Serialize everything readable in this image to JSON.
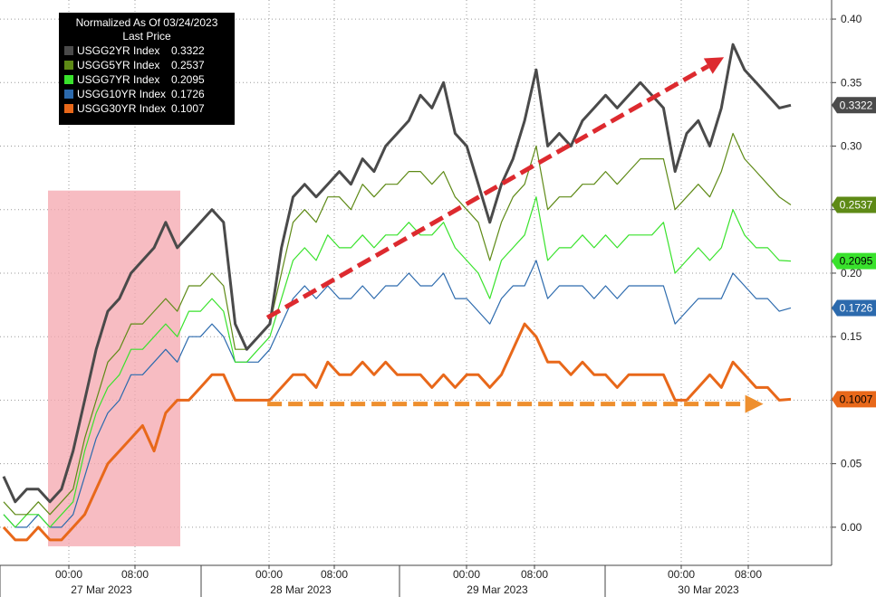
{
  "chart_data": {
    "type": "line",
    "legend": {
      "title": "Normalized As Of 03/24/2023",
      "subtitle": "Last Price",
      "placement": "top-left"
    },
    "y_axis": {
      "ticks": [
        "0.40",
        "0.35",
        "0.30",
        "0.25",
        "0.20",
        "0.15",
        "0.10",
        "0.05",
        "0.00"
      ],
      "tick_values": [
        0.4,
        0.35,
        0.3,
        0.25,
        0.2,
        0.15,
        0.1,
        0.05,
        0.0
      ],
      "ylim": [
        -0.03,
        0.415
      ],
      "side": "right"
    },
    "x_axis": {
      "time_ticks": [
        "00:00",
        "08:00",
        "00:00",
        "08:00",
        "00:00",
        "08:00",
        "00:00",
        "08:00"
      ],
      "date_labels": [
        "27 Mar 2023",
        "28 Mar 2023",
        "29 Mar 2023",
        "30 Mar 2023"
      ]
    },
    "grid": true,
    "highlight_region": {
      "color": "#f4a6ad",
      "y_range": [
        -0.015,
        0.265
      ]
    },
    "series": [
      {
        "name": "USGG2YR Index",
        "last": "0.3322",
        "color": "#4a4a4a",
        "values": [
          0.04,
          0.02,
          0.03,
          0.03,
          0.02,
          0.03,
          0.06,
          0.1,
          0.14,
          0.17,
          0.18,
          0.2,
          0.21,
          0.22,
          0.24,
          0.22,
          0.23,
          0.24,
          0.25,
          0.24,
          0.16,
          0.14,
          0.15,
          0.16,
          0.22,
          0.26,
          0.27,
          0.26,
          0.27,
          0.28,
          0.27,
          0.29,
          0.28,
          0.3,
          0.31,
          0.32,
          0.34,
          0.33,
          0.35,
          0.31,
          0.3,
          0.27,
          0.24,
          0.27,
          0.29,
          0.32,
          0.36,
          0.3,
          0.31,
          0.3,
          0.32,
          0.33,
          0.34,
          0.33,
          0.34,
          0.35,
          0.34,
          0.33,
          0.28,
          0.31,
          0.32,
          0.3,
          0.33,
          0.38,
          0.36,
          0.35,
          0.34,
          0.33,
          0.3322
        ]
      },
      {
        "name": "USGG5YR Index",
        "last": "0.2537",
        "color": "#5e8a16",
        "values": [
          0.02,
          0.01,
          0.01,
          0.02,
          0.01,
          0.02,
          0.03,
          0.07,
          0.1,
          0.13,
          0.14,
          0.16,
          0.16,
          0.17,
          0.18,
          0.17,
          0.19,
          0.19,
          0.2,
          0.19,
          0.14,
          0.14,
          0.15,
          0.16,
          0.2,
          0.24,
          0.25,
          0.24,
          0.26,
          0.26,
          0.25,
          0.27,
          0.26,
          0.27,
          0.27,
          0.28,
          0.28,
          0.27,
          0.28,
          0.26,
          0.25,
          0.24,
          0.21,
          0.24,
          0.26,
          0.27,
          0.3,
          0.25,
          0.26,
          0.26,
          0.27,
          0.27,
          0.28,
          0.27,
          0.28,
          0.29,
          0.29,
          0.29,
          0.25,
          0.26,
          0.27,
          0.26,
          0.28,
          0.31,
          0.29,
          0.28,
          0.27,
          0.26,
          0.2537
        ]
      },
      {
        "name": "USGG7YR Index",
        "last": "0.2095",
        "color": "#39e22c",
        "values": [
          0.01,
          0.0,
          0.01,
          0.01,
          0.0,
          0.01,
          0.02,
          0.06,
          0.09,
          0.11,
          0.12,
          0.14,
          0.14,
          0.15,
          0.16,
          0.15,
          0.17,
          0.17,
          0.18,
          0.17,
          0.13,
          0.13,
          0.14,
          0.15,
          0.18,
          0.21,
          0.22,
          0.21,
          0.23,
          0.22,
          0.22,
          0.23,
          0.22,
          0.23,
          0.23,
          0.24,
          0.23,
          0.23,
          0.24,
          0.22,
          0.21,
          0.2,
          0.18,
          0.21,
          0.22,
          0.23,
          0.26,
          0.21,
          0.22,
          0.22,
          0.23,
          0.22,
          0.23,
          0.22,
          0.23,
          0.23,
          0.23,
          0.24,
          0.2,
          0.21,
          0.22,
          0.21,
          0.22,
          0.25,
          0.23,
          0.22,
          0.22,
          0.21,
          0.2095
        ]
      },
      {
        "name": "USGG10YR Index",
        "last": "0.1726",
        "color": "#2c6aad",
        "values": [
          0.01,
          0.0,
          0.0,
          0.01,
          0.0,
          0.0,
          0.01,
          0.04,
          0.07,
          0.09,
          0.1,
          0.12,
          0.12,
          0.13,
          0.14,
          0.13,
          0.15,
          0.15,
          0.16,
          0.15,
          0.13,
          0.13,
          0.13,
          0.14,
          0.16,
          0.18,
          0.19,
          0.18,
          0.19,
          0.18,
          0.18,
          0.19,
          0.18,
          0.19,
          0.19,
          0.2,
          0.19,
          0.19,
          0.2,
          0.18,
          0.18,
          0.17,
          0.16,
          0.18,
          0.19,
          0.19,
          0.21,
          0.18,
          0.19,
          0.19,
          0.19,
          0.18,
          0.19,
          0.18,
          0.19,
          0.19,
          0.19,
          0.19,
          0.16,
          0.17,
          0.18,
          0.18,
          0.18,
          0.2,
          0.19,
          0.18,
          0.18,
          0.17,
          0.1726
        ]
      },
      {
        "name": "USGG30YR Index",
        "last": "0.1007",
        "color": "#e8681a",
        "values": [
          0.0,
          -0.01,
          -0.01,
          0.0,
          -0.01,
          -0.01,
          0.0,
          0.01,
          0.03,
          0.05,
          0.06,
          0.07,
          0.08,
          0.06,
          0.09,
          0.1,
          0.1,
          0.11,
          0.12,
          0.12,
          0.1,
          0.1,
          0.1,
          0.1,
          0.11,
          0.12,
          0.12,
          0.11,
          0.13,
          0.12,
          0.12,
          0.13,
          0.12,
          0.13,
          0.12,
          0.12,
          0.12,
          0.11,
          0.12,
          0.11,
          0.12,
          0.12,
          0.11,
          0.12,
          0.14,
          0.16,
          0.15,
          0.13,
          0.13,
          0.12,
          0.13,
          0.12,
          0.12,
          0.11,
          0.12,
          0.12,
          0.12,
          0.12,
          0.1,
          0.1,
          0.11,
          0.12,
          0.11,
          0.13,
          0.12,
          0.11,
          0.11,
          0.1,
          0.1007
        ]
      }
    ],
    "annotations": [
      {
        "type": "arrow",
        "color": "#dd2a2f",
        "from_y": 0.165,
        "to_y": 0.37,
        "from_frac": 0.335,
        "to_frac": 0.915
      },
      {
        "type": "arrow",
        "color": "#ee8f2e",
        "from_y": 0.097,
        "to_y": 0.097,
        "from_frac": 0.335,
        "to_frac": 0.965
      }
    ]
  }
}
